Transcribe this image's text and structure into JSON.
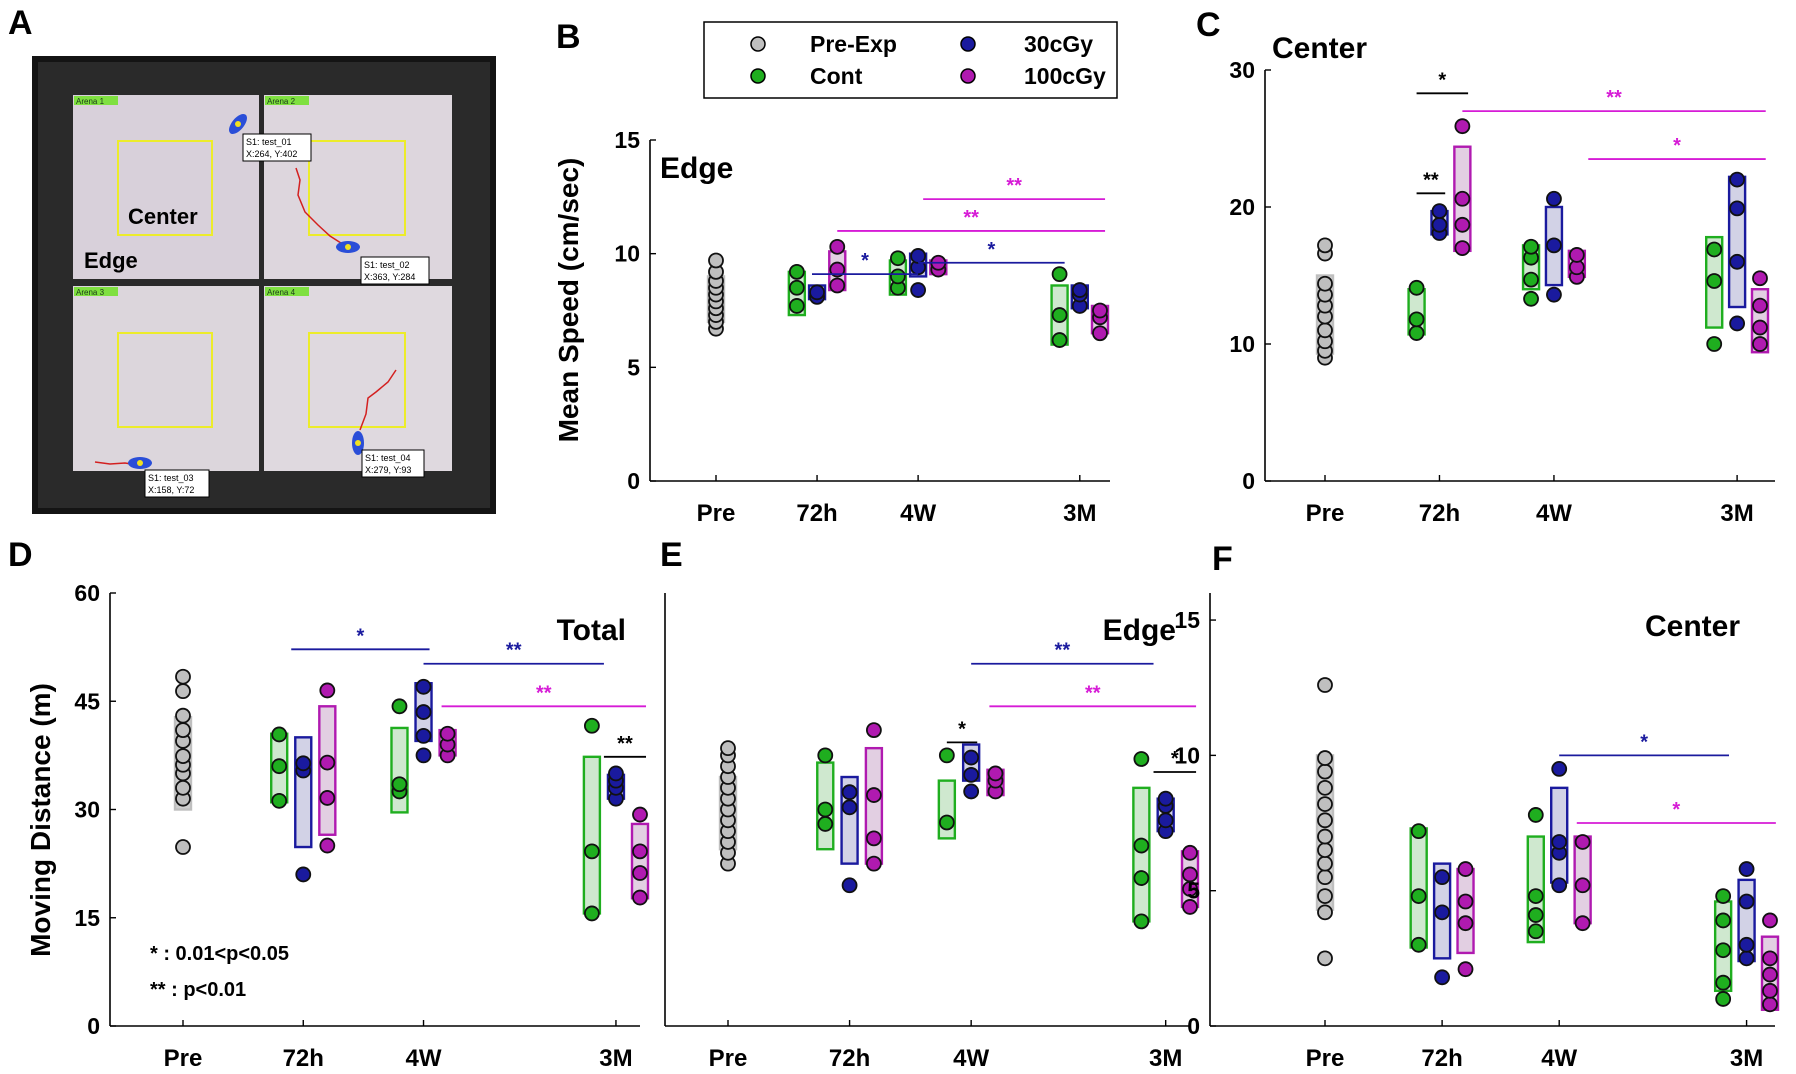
{
  "figure": {
    "panel_letters": [
      "A",
      "B",
      "C",
      "D",
      "E",
      "F"
    ],
    "panelA": {
      "labels": {
        "center": "Center",
        "edge": "Edge"
      },
      "arenas": [
        "Arena 1",
        "Arena 2",
        "Arena 3",
        "Arena 4"
      ],
      "tags": [
        {
          "line1": "S1: test_01",
          "line2": "X:264, Y:402"
        },
        {
          "line1": "S1: test_02",
          "line2": "X:363, Y:284"
        },
        {
          "line1": "S1: test_03",
          "line2": "X:158, Y:72"
        },
        {
          "line1": "S1: test_04",
          "line2": "X:279, Y:93"
        }
      ]
    },
    "legend": {
      "items": [
        {
          "label": "Pre-Exp",
          "color": "#bfbfbf"
        },
        {
          "label": "30cGy",
          "color": "#1a1a9e"
        },
        {
          "label": "Cont",
          "color": "#1fae1f"
        },
        {
          "label": "100cGy",
          "color": "#b01ab0"
        }
      ]
    },
    "note": {
      "line1": "* : 0.01<p<0.05",
      "line2": "** : p<0.01"
    }
  },
  "colors": {
    "pre": "#bfbfbf",
    "cont": "#1fae1f",
    "g30": "#1a1a9e",
    "g100": "#b01ab0",
    "sig_black": "#000000",
    "sig_blue": "#1a1a9e",
    "sig_magenta": "#d61bd6"
  },
  "chart_data": [
    {
      "panel": "B",
      "type": "scatter",
      "title": "Edge",
      "ylabel": "Mean Speed (cm/sec)",
      "xlabel": "",
      "ylim": [
        0,
        15
      ],
      "yticks": [
        0,
        5,
        10,
        15
      ],
      "x_ticks": [
        {
          "label": "Pre",
          "x": 0
        },
        {
          "label": "72h",
          "x": 1
        },
        {
          "label": "4W",
          "x": 2
        },
        {
          "label": "3M",
          "x": 3.6
        }
      ],
      "groups": [
        {
          "series": "pre",
          "x": 0,
          "points": [
            6.7,
            7.0,
            7.3,
            7.6,
            7.9,
            8.2,
            8.5,
            8.8,
            9.2,
            9.7
          ],
          "box": [
            7.0,
            9.0
          ]
        },
        {
          "series": "cont",
          "x": 0.8,
          "points": [
            7.7,
            8.5,
            9.2
          ],
          "box": [
            7.3,
            9.2
          ]
        },
        {
          "series": "g30",
          "x": 1.0,
          "points": [
            8.1,
            8.3
          ],
          "box": [
            8.0,
            8.6
          ]
        },
        {
          "series": "g100",
          "x": 1.2,
          "points": [
            8.6,
            9.3,
            10.3
          ],
          "box": [
            8.4,
            10.1
          ]
        },
        {
          "series": "cont",
          "x": 1.8,
          "points": [
            8.5,
            9.0,
            9.8
          ],
          "box": [
            8.2,
            9.7
          ]
        },
        {
          "series": "g30",
          "x": 2.0,
          "points": [
            8.4,
            9.4,
            9.9
          ],
          "box": [
            9.0,
            10.0
          ]
        },
        {
          "series": "g100",
          "x": 2.2,
          "points": [
            9.3,
            9.6
          ],
          "box": [
            9.1,
            9.7
          ]
        },
        {
          "series": "cont",
          "x": 3.4,
          "points": [
            6.2,
            7.3,
            9.1
          ],
          "box": [
            6.0,
            8.6
          ]
        },
        {
          "series": "g30",
          "x": 3.6,
          "points": [
            7.7,
            8.2,
            8.4
          ],
          "box": [
            7.6,
            8.6
          ]
        },
        {
          "series": "g100",
          "x": 3.8,
          "points": [
            6.5,
            7.2,
            7.5
          ],
          "box": [
            6.5,
            7.7
          ]
        }
      ],
      "sig": [
        {
          "x1": 2.05,
          "x2": 3.85,
          "y": 12.4,
          "label": "**",
          "color": "sig_magenta"
        },
        {
          "x1": 1.2,
          "x2": 3.85,
          "y": 11.0,
          "label": "**",
          "color": "sig_magenta"
        },
        {
          "x1": 2.0,
          "x2": 3.45,
          "y": 9.6,
          "label": "*",
          "color": "sig_blue"
        },
        {
          "x1": 0.95,
          "x2": 2.0,
          "y": 9.1,
          "label": "*",
          "color": "sig_blue"
        }
      ]
    },
    {
      "panel": "C",
      "type": "scatter",
      "title": "Center",
      "ylabel": "",
      "xlabel": "",
      "ylim": [
        0,
        30
      ],
      "yticks": [
        0,
        10,
        20,
        30
      ],
      "x_ticks": [
        {
          "label": "Pre",
          "x": 0
        },
        {
          "label": "72h",
          "x": 1
        },
        {
          "label": "4W",
          "x": 2
        },
        {
          "label": "3M",
          "x": 3.6
        }
      ],
      "groups": [
        {
          "series": "pre",
          "x": 0,
          "points": [
            9.0,
            9.5,
            10.2,
            11.0,
            12.0,
            12.8,
            13.6,
            14.4,
            16.6,
            17.2
          ],
          "box": [
            9.3,
            15.0
          ]
        },
        {
          "series": "cont",
          "x": 0.8,
          "points": [
            10.8,
            11.8,
            14.1
          ],
          "box": [
            10.7,
            14.0
          ]
        },
        {
          "series": "g30",
          "x": 1.0,
          "points": [
            18.1,
            18.7,
            19.7
          ],
          "box": [
            18.0,
            19.7
          ]
        },
        {
          "series": "g100",
          "x": 1.2,
          "points": [
            17.0,
            18.7,
            20.6,
            25.9
          ],
          "box": [
            16.8,
            24.4
          ]
        },
        {
          "series": "cont",
          "x": 1.8,
          "points": [
            13.3,
            14.7,
            16.3,
            17.1
          ],
          "box": [
            14.0,
            17.2
          ]
        },
        {
          "series": "g30",
          "x": 2.0,
          "points": [
            13.6,
            17.2,
            20.6
          ],
          "box": [
            14.3,
            20.0
          ]
        },
        {
          "series": "g100",
          "x": 2.2,
          "points": [
            14.9,
            15.6,
            16.5
          ],
          "box": [
            14.9,
            16.8
          ]
        },
        {
          "series": "cont",
          "x": 3.4,
          "points": [
            10.0,
            14.6,
            16.9
          ],
          "box": [
            11.2,
            17.8
          ]
        },
        {
          "series": "g30",
          "x": 3.6,
          "points": [
            11.5,
            16.0,
            19.9,
            22.0
          ],
          "box": [
            12.7,
            22.2
          ]
        },
        {
          "series": "g100",
          "x": 3.8,
          "points": [
            10.0,
            11.2,
            12.8,
            14.8
          ],
          "box": [
            9.4,
            14.0
          ]
        }
      ],
      "sig": [
        {
          "x1": 0.8,
          "x2": 1.25,
          "y": 28.3,
          "label": "*",
          "color": "sig_black"
        },
        {
          "x1": 1.2,
          "x2": 3.85,
          "y": 27.0,
          "label": "**",
          "color": "sig_magenta"
        },
        {
          "x1": 2.3,
          "x2": 3.85,
          "y": 23.5,
          "label": "*",
          "color": "sig_magenta"
        },
        {
          "x1": 0.8,
          "x2": 1.05,
          "y": 21.0,
          "label": "**",
          "color": "sig_black"
        }
      ]
    },
    {
      "panel": "D",
      "type": "scatter",
      "title": "Total",
      "ylabel": "Moving Distance (m)",
      "xlabel": "",
      "ylim": [
        0,
        60
      ],
      "yticks": [
        0,
        15,
        30,
        45,
        60
      ],
      "x_ticks": [
        {
          "label": "Pre",
          "x": 0
        },
        {
          "label": "72h",
          "x": 1
        },
        {
          "label": "4W",
          "x": 2
        },
        {
          "label": "3M",
          "x": 3.6
        }
      ],
      "groups": [
        {
          "series": "pre",
          "x": 0,
          "points": [
            24.8,
            31.5,
            33.0,
            35.0,
            36.2,
            37.4,
            39.5,
            41.0,
            43.0,
            46.4,
            48.4
          ],
          "box": [
            30.0,
            42.8
          ]
        },
        {
          "series": "cont",
          "x": 0.8,
          "points": [
            31.2,
            36.0,
            40.4
          ],
          "box": [
            31.0,
            40.5
          ]
        },
        {
          "series": "g30",
          "x": 1.0,
          "points": [
            21.0,
            35.4,
            36.4
          ],
          "box": [
            24.8,
            40.0
          ]
        },
        {
          "series": "g100",
          "x": 1.2,
          "points": [
            25.0,
            31.6,
            36.5,
            46.5
          ],
          "box": [
            26.5,
            44.3
          ]
        },
        {
          "series": "cont",
          "x": 1.8,
          "points": [
            32.5,
            33.5,
            44.3
          ],
          "box": [
            29.6,
            41.3
          ]
        },
        {
          "series": "g30",
          "x": 2.0,
          "points": [
            37.5,
            40.2,
            43.5,
            47.0
          ],
          "box": [
            39.5,
            47.5
          ]
        },
        {
          "series": "g100",
          "x": 2.2,
          "points": [
            37.5,
            39.0,
            40.5
          ],
          "box": [
            37.5,
            41.0
          ]
        },
        {
          "series": "cont",
          "x": 3.4,
          "points": [
            15.6,
            24.2,
            41.6
          ],
          "box": [
            15.6,
            37.3
          ]
        },
        {
          "series": "g30",
          "x": 3.6,
          "points": [
            31.5,
            33.0,
            34.0,
            35.0
          ],
          "box": [
            31.5,
            34.8
          ]
        },
        {
          "series": "g100",
          "x": 3.8,
          "points": [
            17.8,
            21.2,
            24.2,
            29.3
          ],
          "box": [
            17.7,
            28.0
          ]
        }
      ],
      "sig": [
        {
          "x1": 0.9,
          "x2": 2.05,
          "y": 52.2,
          "label": "*",
          "color": "sig_blue"
        },
        {
          "x1": 2.0,
          "x2": 3.5,
          "y": 50.2,
          "label": "**",
          "color": "sig_blue"
        },
        {
          "x1": 2.15,
          "x2": 3.85,
          "y": 44.3,
          "label": "**",
          "color": "sig_magenta"
        },
        {
          "x1": 3.5,
          "x2": 3.85,
          "y": 37.3,
          "label": "**",
          "color": "sig_black"
        }
      ]
    },
    {
      "panel": "E",
      "type": "scatter",
      "title": "Edge",
      "ylabel": "",
      "xlabel": "",
      "ylim": [
        0,
        60
      ],
      "yticks": [],
      "x_ticks": [
        {
          "label": "Pre",
          "x": 0
        },
        {
          "label": "72h",
          "x": 1
        },
        {
          "label": "4W",
          "x": 2
        },
        {
          "label": "3M",
          "x": 3.6
        }
      ],
      "groups": [
        {
          "series": "pre",
          "x": 0,
          "points": [
            22.5,
            24.0,
            25.5,
            27.0,
            28.5,
            30.0,
            31.5,
            33.0,
            34.5,
            36.0,
            37.5,
            38.5
          ],
          "box": [
            24.5,
            34.5
          ]
        },
        {
          "series": "cont",
          "x": 0.8,
          "points": [
            28.0,
            30.0,
            37.5
          ],
          "box": [
            24.5,
            36.5
          ]
        },
        {
          "series": "g30",
          "x": 1.0,
          "points": [
            19.5,
            30.3,
            32.4
          ],
          "box": [
            22.5,
            34.5
          ]
        },
        {
          "series": "g100",
          "x": 1.2,
          "points": [
            22.5,
            26.0,
            32.0,
            41.0
          ],
          "box": [
            22.5,
            38.5
          ]
        },
        {
          "series": "cont",
          "x": 1.8,
          "points": [
            28.2,
            37.5
          ],
          "box": [
            26.0,
            34.0
          ]
        },
        {
          "series": "g30",
          "x": 2.0,
          "points": [
            32.5,
            34.8,
            37.2
          ],
          "box": [
            34.0,
            39.0
          ]
        },
        {
          "series": "g100",
          "x": 2.2,
          "points": [
            32.5,
            34.0,
            35.0
          ],
          "box": [
            32.0,
            35.5
          ]
        },
        {
          "series": "cont",
          "x": 3.4,
          "points": [
            14.5,
            20.5,
            25.0,
            37.0
          ],
          "box": [
            14.5,
            33.0
          ]
        },
        {
          "series": "g30",
          "x": 3.6,
          "points": [
            27.0,
            28.5,
            30.5,
            31.5
          ],
          "box": [
            27.0,
            31.5
          ]
        },
        {
          "series": "g100",
          "x": 3.8,
          "points": [
            16.5,
            19.0,
            21.0,
            24.0
          ],
          "box": [
            16.5,
            24.2
          ]
        }
      ],
      "sig": [
        {
          "x1": 2.0,
          "x2": 3.5,
          "y": 50.2,
          "label": "**",
          "color": "sig_blue"
        },
        {
          "x1": 2.15,
          "x2": 3.85,
          "y": 44.3,
          "label": "**",
          "color": "sig_magenta"
        },
        {
          "x1": 1.8,
          "x2": 2.05,
          "y": 39.3,
          "label": "*",
          "color": "sig_black"
        },
        {
          "x1": 3.5,
          "x2": 3.85,
          "y": 35.2,
          "label": "*",
          "color": "sig_black"
        }
      ]
    },
    {
      "panel": "F",
      "type": "scatter",
      "title": "Center",
      "ylabel": "",
      "xlabel": "",
      "ylim": [
        0,
        16
      ],
      "yticks": [
        0,
        5,
        10,
        15
      ],
      "x_ticks": [
        {
          "label": "Pre",
          "x": 0
        },
        {
          "label": "72h",
          "x": 1
        },
        {
          "label": "4W",
          "x": 2
        },
        {
          "label": "3M",
          "x": 3.6
        }
      ],
      "groups": [
        {
          "series": "pre",
          "x": 0,
          "points": [
            2.5,
            4.2,
            4.8,
            5.5,
            6.0,
            6.5,
            7.0,
            7.6,
            8.2,
            8.8,
            9.4,
            9.9,
            12.6
          ],
          "box": [
            4.3,
            10.0
          ]
        },
        {
          "series": "cont",
          "x": 0.8,
          "points": [
            3.0,
            4.8,
            7.2
          ],
          "box": [
            2.9,
            7.3
          ]
        },
        {
          "series": "g30",
          "x": 1.0,
          "points": [
            1.8,
            4.2,
            5.5
          ],
          "box": [
            2.5,
            6.0
          ]
        },
        {
          "series": "g100",
          "x": 1.2,
          "points": [
            2.1,
            3.8,
            4.6,
            5.8
          ],
          "box": [
            2.7,
            5.8
          ]
        },
        {
          "series": "cont",
          "x": 1.8,
          "points": [
            3.5,
            4.1,
            4.8,
            7.8
          ],
          "box": [
            3.1,
            7.0
          ]
        },
        {
          "series": "g30",
          "x": 2.0,
          "points": [
            5.2,
            6.4,
            6.8,
            9.5
          ],
          "box": [
            5.3,
            8.8
          ]
        },
        {
          "series": "g100",
          "x": 2.2,
          "points": [
            3.8,
            5.2,
            6.8
          ],
          "box": [
            3.8,
            7.0
          ]
        },
        {
          "series": "cont",
          "x": 3.4,
          "points": [
            1.0,
            1.6,
            2.8,
            3.9,
            4.8
          ],
          "box": [
            1.3,
            4.6
          ]
        },
        {
          "series": "g30",
          "x": 3.6,
          "points": [
            2.5,
            3.0,
            4.6,
            5.8
          ],
          "box": [
            2.4,
            5.4
          ]
        },
        {
          "series": "g100",
          "x": 3.8,
          "points": [
            0.8,
            1.3,
            1.9,
            2.5,
            3.9
          ],
          "box": [
            0.6,
            3.3
          ]
        }
      ],
      "sig": [
        {
          "x1": 2.0,
          "x2": 3.45,
          "y": 10.0,
          "label": "*",
          "color": "sig_blue"
        },
        {
          "x1": 2.15,
          "x2": 3.85,
          "y": 7.5,
          "label": "*",
          "color": "sig_magenta"
        }
      ]
    }
  ]
}
